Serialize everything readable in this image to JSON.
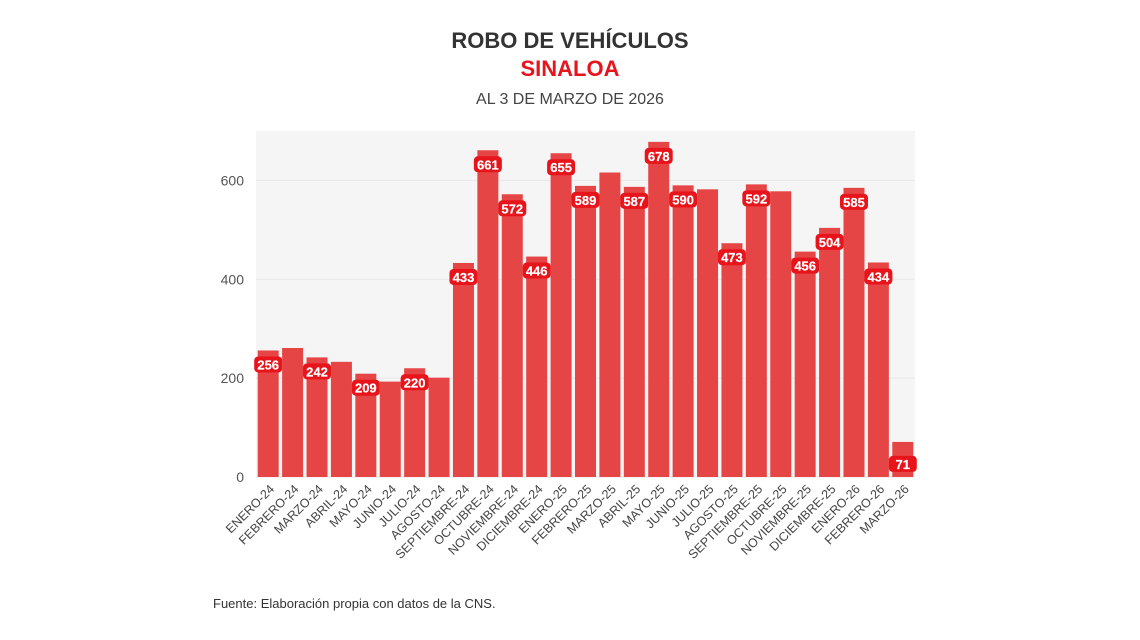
{
  "chart_data": {
    "type": "bar",
    "title": "ROBO DE VEHÍCULOS",
    "subtitle": "SINALOA",
    "caption": "AL 3 DE MARZO DE 2026",
    "source": "Fuente: Elaboración propia con datos de la CNS.",
    "categories": [
      "ENERO-24",
      "FEBRERO-24",
      "MARZO-24",
      "ABRIL-24",
      "MAYO-24",
      "JUNIO-24",
      "JULIO-24",
      "AGOSTO-24",
      "SEPTIEMBRE-24",
      "OCTUBRE-24",
      "NOVIEMBRE-24",
      "DICIEMBRE-24",
      "ENERO-25",
      "FEBRERO-25",
      "MARZO-25",
      "ABRIL-25",
      "MAYO-25",
      "JUNIO-25",
      "JULIO-25",
      "AGOSTO-25",
      "SEPTIEMBRE-25",
      "OCTUBRE-25",
      "NOVIEMBRE-25",
      "DICIEMBRE-25",
      "ENERO-26",
      "FEBRERO-26",
      "MARZO-26"
    ],
    "values": [
      256,
      261,
      242,
      233,
      209,
      193,
      220,
      201,
      433,
      661,
      572,
      446,
      655,
      589,
      616,
      587,
      678,
      590,
      582,
      473,
      592,
      578,
      456,
      504,
      585,
      434,
      71
    ],
    "labeled": [
      true,
      false,
      true,
      false,
      true,
      false,
      true,
      false,
      true,
      true,
      true,
      true,
      true,
      true,
      false,
      true,
      true,
      true,
      false,
      true,
      true,
      false,
      true,
      true,
      true,
      true,
      true
    ],
    "ylim": [
      0,
      700
    ],
    "yticks": [
      0,
      200,
      400,
      600
    ],
    "grid": true,
    "bar_color": "#e64545",
    "label_color": "#e8141b",
    "title_color": "#333333",
    "subtitle_color": "#e8141b"
  }
}
